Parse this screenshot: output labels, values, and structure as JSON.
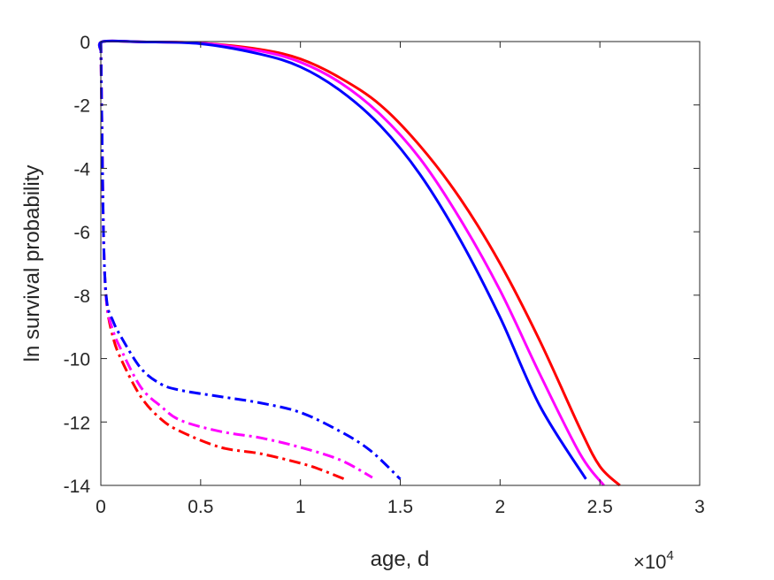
{
  "chart_data": {
    "type": "line",
    "title": "",
    "xlabel": "age, d",
    "ylabel": "ln survival probability",
    "x_multiplier_label": "×10",
    "x_multiplier_exponent": "4",
    "x_scale": 10000,
    "xlim": [
      0,
      30000
    ],
    "ylim": [
      -14,
      0
    ],
    "grid": false,
    "box": true,
    "xticks": [
      0,
      5000,
      10000,
      15000,
      20000,
      25000,
      30000
    ],
    "xtick_labels": [
      "0",
      "0.5",
      "1",
      "1.5",
      "2",
      "2.5",
      "3"
    ],
    "yticks": [
      0,
      -2,
      -4,
      -6,
      -8,
      -10,
      -12,
      -14
    ],
    "ytick_labels": [
      "0",
      "-2",
      "-4",
      "-6",
      "-8",
      "-10",
      "-12",
      "-14"
    ],
    "series": [
      {
        "color": "#ff0000",
        "dash": "solid",
        "x": [
          0,
          100,
          2000,
          5000,
          8000,
          10000,
          12000,
          14000,
          16000,
          18000,
          20000,
          22000,
          24000,
          25000,
          26000
        ],
        "y": [
          -0.3,
          0,
          -0.01,
          -0.05,
          -0.25,
          -0.55,
          -1.15,
          -2.0,
          -3.3,
          -4.95,
          -7.0,
          -9.45,
          -12.2,
          -13.4,
          -14.0
        ]
      },
      {
        "color": "#ff00ff",
        "dash": "solid",
        "x": [
          0,
          100,
          2000,
          5000,
          8000,
          10000,
          12000,
          14000,
          16000,
          18000,
          20000,
          22000,
          24000,
          25200
        ],
        "y": [
          -0.3,
          0,
          -0.01,
          -0.05,
          -0.3,
          -0.65,
          -1.3,
          -2.3,
          -3.7,
          -5.6,
          -7.85,
          -10.5,
          -13.0,
          -14.0
        ]
      },
      {
        "color": "#0000ff",
        "dash": "solid",
        "x": [
          0,
          100,
          2000,
          5000,
          8000,
          10000,
          12000,
          14000,
          16000,
          18000,
          20000,
          22000,
          24300
        ],
        "y": [
          -0.3,
          0,
          -0.01,
          -0.07,
          -0.4,
          -0.8,
          -1.55,
          -2.65,
          -4.2,
          -6.25,
          -8.7,
          -11.5,
          -13.8
        ]
      },
      {
        "color": "#ff0000",
        "dash": "dashdot",
        "x": [
          0,
          50,
          150,
          300,
          600,
          1000,
          2000,
          3000,
          4000,
          6000,
          8000,
          10000,
          11000,
          12200
        ],
        "y": [
          0,
          -2.5,
          -6.5,
          -8.3,
          -9.3,
          -10.0,
          -11.2,
          -11.9,
          -12.3,
          -12.8,
          -13.0,
          -13.3,
          -13.5,
          -13.8
        ]
      },
      {
        "color": "#ff00ff",
        "dash": "dashdot",
        "x": [
          0,
          50,
          150,
          300,
          600,
          1000,
          2000,
          3000,
          4000,
          6000,
          8000,
          10000,
          12000,
          13600
        ],
        "y": [
          0,
          -2.5,
          -6.5,
          -8.3,
          -9.1,
          -9.7,
          -10.9,
          -11.5,
          -11.95,
          -12.3,
          -12.5,
          -12.8,
          -13.2,
          -13.75
        ]
      },
      {
        "color": "#0000ff",
        "dash": "dashdot",
        "x": [
          0,
          50,
          150,
          300,
          600,
          1000,
          2000,
          3000,
          4000,
          6000,
          8000,
          10000,
          12000,
          13500,
          15000
        ],
        "y": [
          0,
          -2.5,
          -6.5,
          -8.2,
          -8.8,
          -9.3,
          -10.3,
          -10.8,
          -11.0,
          -11.2,
          -11.4,
          -11.7,
          -12.3,
          -12.9,
          -13.8
        ]
      }
    ]
  }
}
